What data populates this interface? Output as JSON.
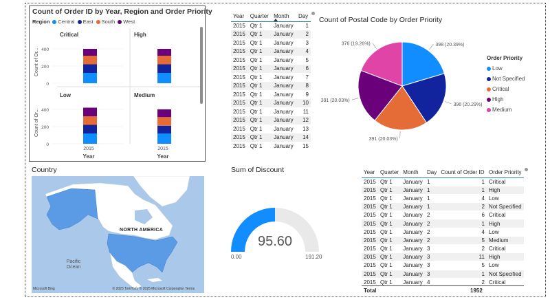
{
  "colors": {
    "central": "#118dff",
    "east": "#12239e",
    "south": "#e66c37",
    "west": "#6b007b",
    "medium": "#e044a7"
  },
  "small_multiples": {
    "title": "Count of Order ID by Year, Region and Order Priority",
    "legend_title": "Region",
    "legend": [
      {
        "name": "Central",
        "color": "#118dff"
      },
      {
        "name": "East",
        "color": "#12239e"
      },
      {
        "name": "South",
        "color": "#e66c37"
      },
      {
        "name": "West",
        "color": "#6b007b"
      }
    ],
    "ylabel": "Count of Or...",
    "xlabel": "Year"
  },
  "chart_data": [
    {
      "type": "bar",
      "stacked": true,
      "title": "Count of Order ID by Year, Region and Order Priority",
      "xlabel": "Year",
      "ylabel": "Count of Or...",
      "ylim": [
        0,
        400
      ],
      "yticks": [
        0,
        200,
        400
      ],
      "categories": [
        "2015"
      ],
      "panels": [
        {
          "name": "Critical",
          "series": [
            {
              "name": "Central",
              "values": [
                120
              ]
            },
            {
              "name": "East",
              "values": [
                100
              ]
            },
            {
              "name": "South",
              "values": [
                100
              ]
            },
            {
              "name": "West",
              "values": [
                80
              ]
            }
          ]
        },
        {
          "name": "High",
          "series": [
            {
              "name": "Central",
              "values": [
                120
              ]
            },
            {
              "name": "East",
              "values": [
                100
              ]
            },
            {
              "name": "South",
              "values": [
                100
              ]
            },
            {
              "name": "West",
              "values": [
                80
              ]
            }
          ]
        },
        {
          "name": "Low",
          "series": [
            {
              "name": "Central",
              "values": [
                120
              ]
            },
            {
              "name": "East",
              "values": [
                100
              ]
            },
            {
              "name": "South",
              "values": [
                100
              ]
            },
            {
              "name": "West",
              "values": [
                100
              ]
            }
          ]
        },
        {
          "name": "Medium",
          "series": [
            {
              "name": "Central",
              "values": [
                120
              ]
            },
            {
              "name": "East",
              "values": [
                90
              ]
            },
            {
              "name": "South",
              "values": [
                100
              ]
            },
            {
              "name": "West",
              "values": [
                90
              ]
            }
          ]
        }
      ]
    },
    {
      "type": "pie",
      "title": "Count of Postal Code by Order Priority",
      "legend_title": "Order Priority",
      "slices": [
        {
          "name": "Low",
          "value": 398,
          "label": "398 (20.39%)",
          "color": "#118dff"
        },
        {
          "name": "Not Specified",
          "value": 396,
          "label": "396 (20.29%)",
          "color": "#12239e"
        },
        {
          "name": "Critical",
          "value": 391,
          "label": "391 (20.03%)",
          "color": "#e66c37"
        },
        {
          "name": "High",
          "value": 391,
          "label": "391 (20.03%)",
          "color": "#6b007b"
        },
        {
          "name": "Medium",
          "value": 376,
          "label": "376 (19.26%)",
          "color": "#e044a7"
        }
      ]
    },
    {
      "type": "gauge",
      "title": "Sum of Discount",
      "value": 95.6,
      "value_label": "95.60",
      "min": 0,
      "min_label": "0.00",
      "max": 191.2,
      "max_label": "191.20"
    }
  ],
  "table1": {
    "columns": [
      "Year",
      "Quarter",
      "Month",
      "Day"
    ],
    "rows": [
      [
        "2015",
        "Qtr 1",
        "January",
        "1"
      ],
      [
        "2015",
        "Qtr 1",
        "January",
        "2"
      ],
      [
        "2015",
        "Qtr 1",
        "January",
        "3"
      ],
      [
        "2015",
        "Qtr 1",
        "January",
        "4"
      ],
      [
        "2015",
        "Qtr 1",
        "January",
        "5"
      ],
      [
        "2015",
        "Qtr 1",
        "January",
        "6"
      ],
      [
        "2015",
        "Qtr 1",
        "January",
        "7"
      ],
      [
        "2015",
        "Qtr 1",
        "January",
        "8"
      ],
      [
        "2015",
        "Qtr 1",
        "January",
        "9"
      ],
      [
        "2015",
        "Qtr 1",
        "January",
        "10"
      ],
      [
        "2015",
        "Qtr 1",
        "January",
        "11"
      ],
      [
        "2015",
        "Qtr 1",
        "January",
        "12"
      ],
      [
        "2015",
        "Qtr 1",
        "January",
        "13"
      ],
      [
        "2015",
        "Qtr 1",
        "January",
        "14"
      ],
      [
        "2015",
        "Qtr 1",
        "January",
        "15"
      ]
    ]
  },
  "pie_title": "Count of Postal Code by Order Priority",
  "pie_legend_title": "Order Priority",
  "map": {
    "title": "Country",
    "label": "NORTH AMERICA",
    "ocean": "Pacific Ocean",
    "credit": "© 2025 TomTom, © 2025 Microsoft Corporation  Terms",
    "provider": "Microsoft Bing"
  },
  "gauge": {
    "title": "Sum of Discount",
    "value": "95.60",
    "min": "0.00",
    "max": "191.20"
  },
  "table2": {
    "columns": [
      "Year",
      "Quarter",
      "Month",
      "Day",
      "Count of Order ID",
      "Order Priority"
    ],
    "rows": [
      [
        "2015",
        "Qtr 1",
        "January",
        "1",
        "1",
        "Critical"
      ],
      [
        "2015",
        "Qtr 1",
        "January",
        "1",
        "1",
        "High"
      ],
      [
        "2015",
        "Qtr 1",
        "January",
        "1",
        "4",
        "Low"
      ],
      [
        "2015",
        "Qtr 1",
        "January",
        "1",
        "2",
        "Not Specified"
      ],
      [
        "2015",
        "Qtr 1",
        "January",
        "2",
        "6",
        "Critical"
      ],
      [
        "2015",
        "Qtr 1",
        "January",
        "2",
        "1",
        "High"
      ],
      [
        "2015",
        "Qtr 1",
        "January",
        "2",
        "4",
        "Low"
      ],
      [
        "2015",
        "Qtr 1",
        "January",
        "2",
        "5",
        "Medium"
      ],
      [
        "2015",
        "Qtr 1",
        "January",
        "3",
        "2",
        "Critical"
      ],
      [
        "2015",
        "Qtr 1",
        "January",
        "3",
        "11",
        "High"
      ],
      [
        "2015",
        "Qtr 1",
        "January",
        "3",
        "5",
        "Low"
      ],
      [
        "2015",
        "Qtr 1",
        "January",
        "3",
        "1",
        "Not Specified"
      ],
      [
        "2015",
        "Qtr 1",
        "January",
        "4",
        "2",
        "Critical"
      ]
    ],
    "total_label": "Total",
    "total_value": "1952"
  }
}
